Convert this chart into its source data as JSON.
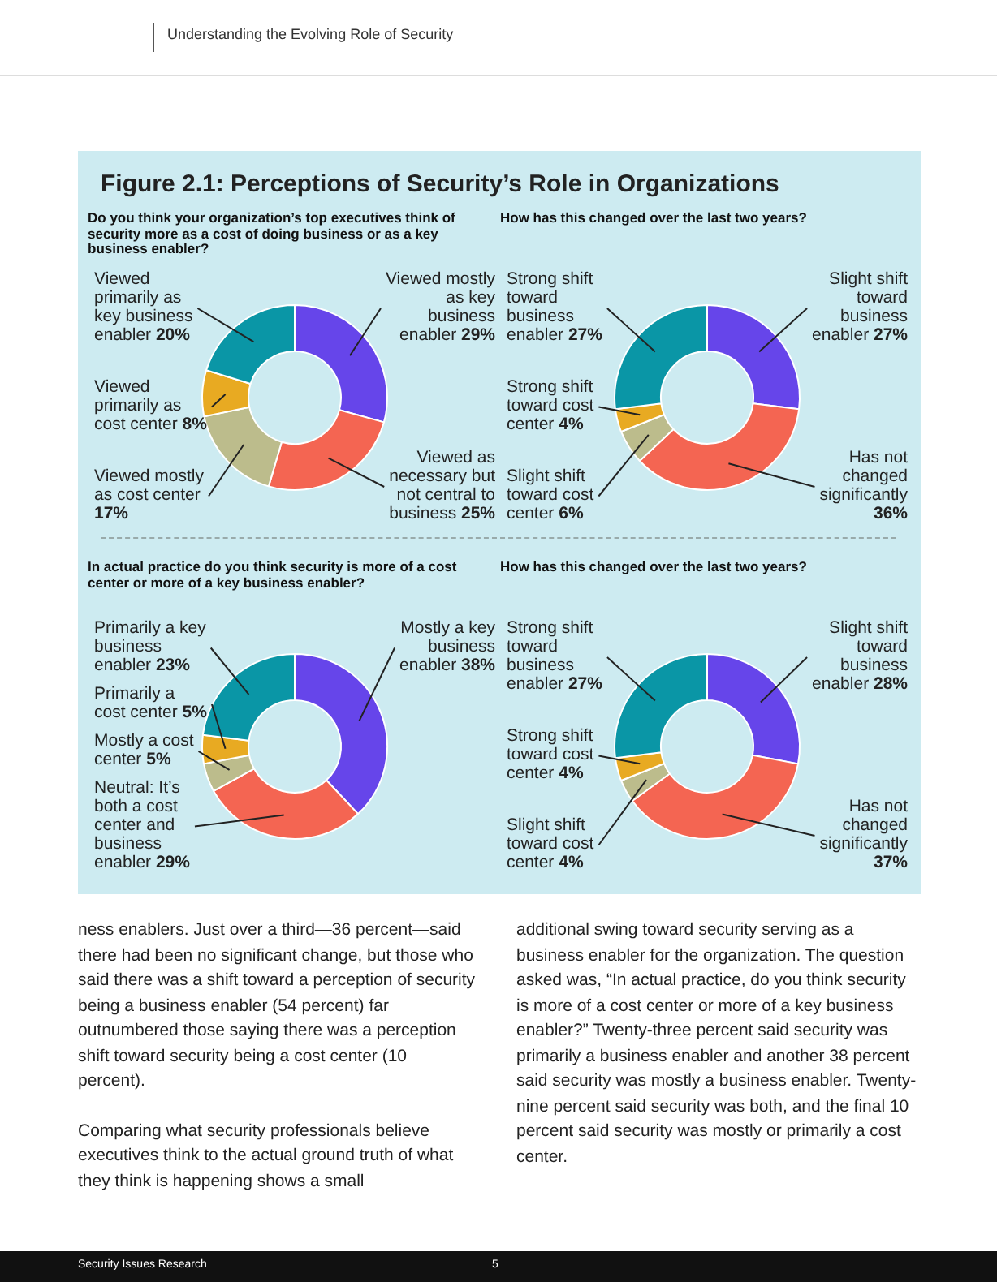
{
  "chart_data": [
    {
      "type": "donut",
      "title": "Figure 2.1: Perceptions of Security’s Role in Organizations",
      "subtitle": "Do you think your organization’s top executives think of security more as a cost of doing business or as a key business enabler?",
      "annotations": [
        "Understanding the Evolving Role of Security"
      ],
      "categories": [
        "Viewed mostly as key business enabler",
        "Viewed as necessary but not central to business",
        "Viewed mostly as cost center",
        "Viewed primarily as cost center",
        "Viewed primarily as key business enabler"
      ],
      "values": [
        29,
        25,
        17,
        8,
        20
      ],
      "value_labels": [
        "29%",
        "25%",
        "17%",
        "8%",
        "20%"
      ],
      "colors": [
        "#6645ea",
        "#f46552",
        "#bcbc8c",
        "#e8aa22",
        "#0a96a6"
      ]
    },
    {
      "type": "donut",
      "title": "How has this changed over the last two years?",
      "categories": [
        "Slight shift toward business enabler",
        "Has not changed significantly",
        "Slight shift toward cost center",
        "Strong shift toward cost center",
        "Strong shift toward business enabler"
      ],
      "values": [
        27,
        36,
        6,
        4,
        27
      ],
      "value_labels": [
        "27%",
        "36%",
        "6%",
        "4%",
        "27%"
      ],
      "colors": [
        "#6645ea",
        "#f46552",
        "#bcbc8c",
        "#e8aa22",
        "#0a96a6"
      ]
    },
    {
      "type": "donut",
      "title": "In actual practice do you think security is more of a cost center or more of a key business enabler?",
      "categories": [
        "Mostly a key business enabler",
        "Neutral: It’s both a cost center and business enabler",
        "Mostly a cost center",
        "Primarily a cost center",
        "Primarily a key business enabler"
      ],
      "values": [
        38,
        29,
        5,
        5,
        23
      ],
      "value_labels": [
        "38%",
        "29%",
        "5%",
        "5%",
        "23%"
      ],
      "colors": [
        "#6645ea",
        "#f46552",
        "#bcbc8c",
        "#e8aa22",
        "#0a96a6"
      ]
    },
    {
      "type": "donut",
      "title": "How has this changed over the last two years?",
      "categories": [
        "Slight shift toward business enabler",
        "Has not changed significantly",
        "Slight shift toward cost center",
        "Strong shift toward cost center",
        "Strong shift toward business enabler"
      ],
      "values": [
        28,
        37,
        4,
        4,
        27
      ],
      "value_labels": [
        "28%",
        "37%",
        "4%",
        "4%",
        "27%"
      ],
      "colors": [
        "#6645ea",
        "#f46552",
        "#bcbc8c",
        "#e8aa22",
        "#0a96a6"
      ],
      "annotations": [
        "ness enablers. Just over a third—36 percent—said there had been no significant change, but those who said there was a shift toward a perception of security being a business enabler (54 percent) far outnumbered those saying there was a perception shift toward security being a cost center (10 percent).",
        "Comparing what security professionals believe executives think to the actual ground truth of what they think is happening shows a small",
        "additional swing toward security serving as a business enabler for the organization. The question asked was, “In actual practice, do you think security is more of a cost center or more of a key business enabler?” Twenty-three percent said security was primarily a business enabler and another 38 percent said security was mostly a business enabler. Twenty-nine percent said security was both, and the final 10 percent said security was mostly or primarily a cost center.",
        "Security Issues Research",
        "5"
      ]
    }
  ]
}
